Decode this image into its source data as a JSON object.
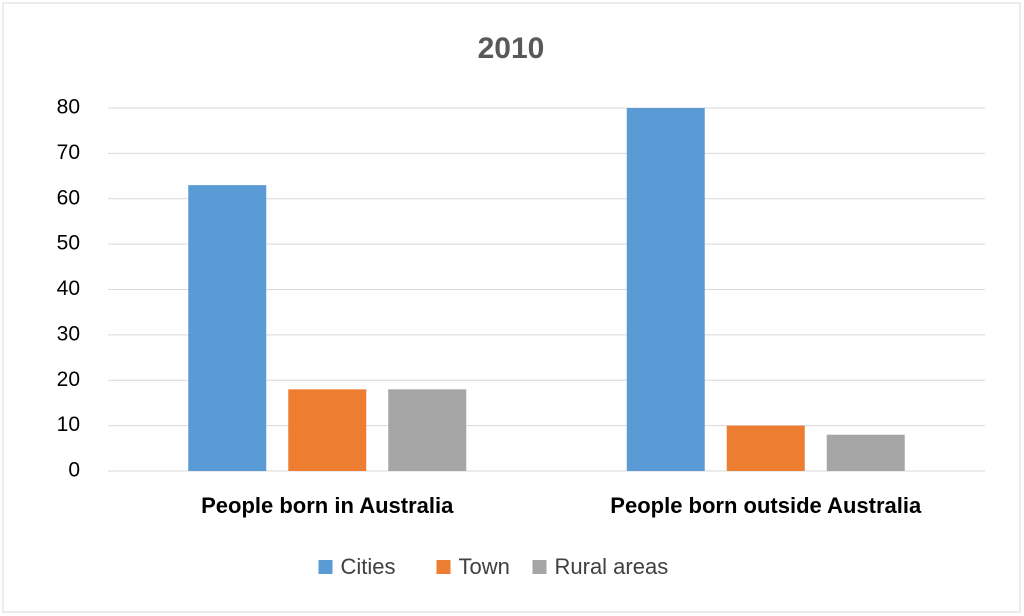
{
  "chart_data": {
    "type": "bar",
    "title": "2010",
    "categories": [
      "People born in Australia",
      "People born outside Australia"
    ],
    "series": [
      {
        "name": "Cities",
        "color": "#5b9bd5",
        "values": [
          63,
          80
        ]
      },
      {
        "name": "Town",
        "color": "#ed7d31",
        "values": [
          18,
          10
        ]
      },
      {
        "name": "Rural areas",
        "color": "#a5a5a5",
        "values": [
          18,
          8
        ]
      }
    ],
    "ylim": [
      0,
      80
    ],
    "yticks": [
      0,
      10,
      20,
      30,
      40,
      50,
      60,
      70,
      80
    ],
    "grid": true,
    "legend": "bottom"
  }
}
